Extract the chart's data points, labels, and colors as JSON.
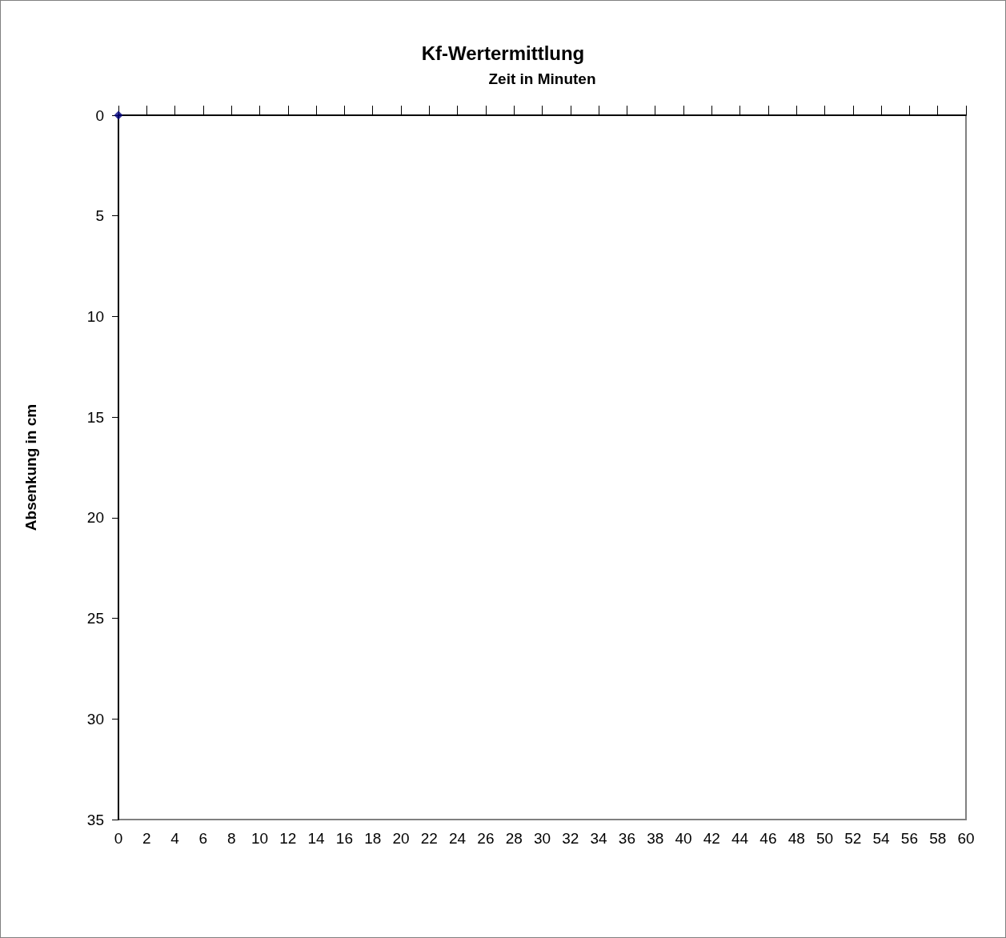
{
  "chart_data": {
    "type": "scatter",
    "title": "Kf-Wertermittlung",
    "xlabel": "Zeit in Minuten",
    "ylabel": "Absenkung in cm",
    "x": [
      0
    ],
    "values": [
      0
    ],
    "color": "#000080",
    "marker": "diamond",
    "xlim": [
      0,
      60
    ],
    "xticks": [
      0,
      2,
      4,
      6,
      8,
      10,
      12,
      14,
      16,
      18,
      20,
      22,
      24,
      26,
      28,
      30,
      32,
      34,
      36,
      38,
      40,
      42,
      44,
      46,
      48,
      50,
      52,
      54,
      56,
      58,
      60
    ],
    "ylim": [
      35,
      0
    ],
    "yticks": [
      0,
      5,
      10,
      15,
      20,
      25,
      30,
      35
    ],
    "grid": false
  }
}
